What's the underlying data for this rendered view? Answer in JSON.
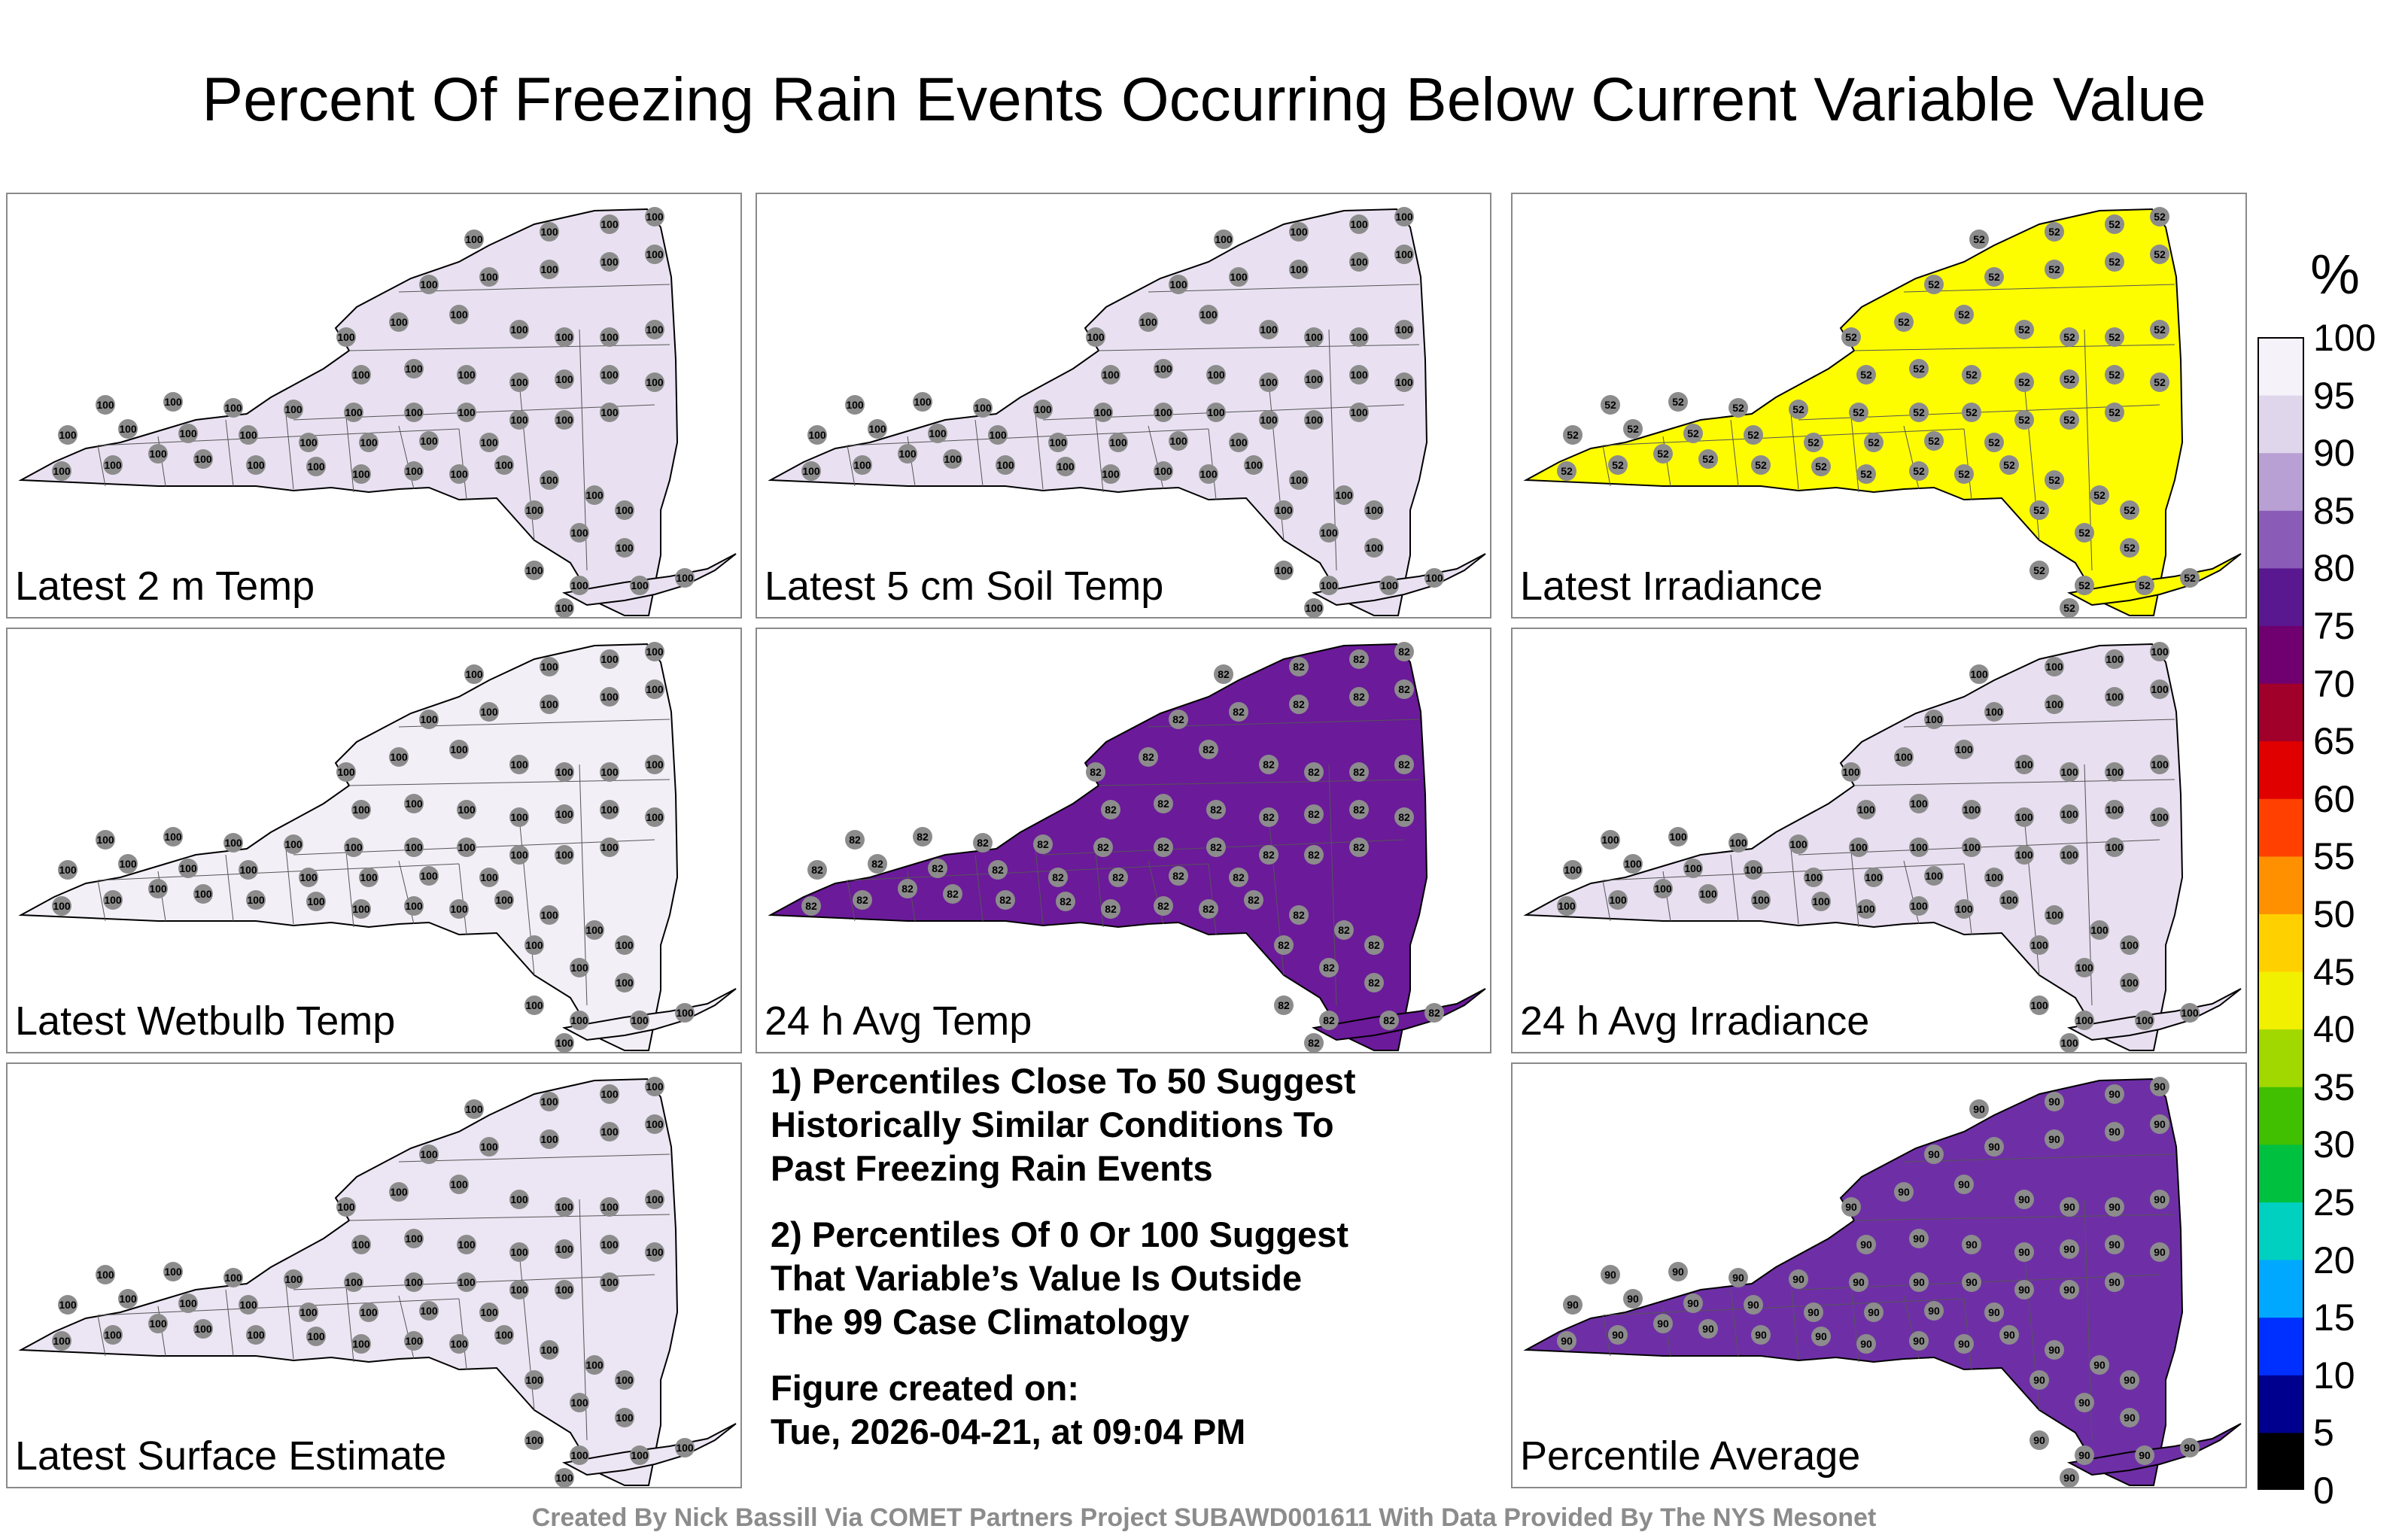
{
  "title": "Percent Of Freezing Rain Events Occurring Below Current Variable Value",
  "panels": [
    {
      "label": "Latest 2 m Temp",
      "fill": "#e9e1f1",
      "value": "100"
    },
    {
      "label": "Latest 5 cm Soil Temp",
      "fill": "#e9e1f1",
      "value": "100"
    },
    {
      "label": "Latest Irradiance",
      "fill": "#fdfd00",
      "value": "52"
    },
    {
      "label": "Latest Wetbulb Temp",
      "fill": "#f3eff7",
      "value": "100"
    },
    {
      "label": "24 h Avg Temp",
      "fill": "#6b1a9a",
      "value": "82"
    },
    {
      "label": "24 h Avg Irradiance",
      "fill": "#e8dff0",
      "value": "100"
    },
    {
      "label": "Latest Surface Estimate",
      "fill": "#ece5f3",
      "value": "100"
    },
    {
      "label": "Percentile Average",
      "fill": "#6e2fa6",
      "value": "90"
    }
  ],
  "notes": [
    "1) Percentiles Close To 50 Suggest\nHistorically Similar Conditions To\nPast Freezing Rain Events",
    "2) Percentiles Of 0 Or 100 Suggest\nThat Variable’s Value Is Outside\nThe 99 Case Climatology",
    "Figure created on:\nTue, 2026-04-21, at 09:04 PM"
  ],
  "colorbar": {
    "unit": "%",
    "ticks": [
      "100",
      "95",
      "90",
      "85",
      "80",
      "75",
      "70",
      "65",
      "60",
      "55",
      "50",
      "45",
      "40",
      "35",
      "30",
      "25",
      "20",
      "15",
      "10",
      "5",
      "0"
    ],
    "colors": [
      "#000000",
      "#00008f",
      "#0030ff",
      "#00a8ff",
      "#00d0c0",
      "#00c040",
      "#40c000",
      "#a0d800",
      "#f0f000",
      "#ffd000",
      "#ff9000",
      "#ff4000",
      "#e00000",
      "#a0002a",
      "#700070",
      "#5a1890",
      "#8a5cb8",
      "#b8a0d4",
      "#e0d6ec",
      "#f6f2fa"
    ]
  },
  "credit": "Created By Nick Bassill Via COMET Partners Project SUBAWD001611 With Data Provided By The NYS Mesonet"
}
